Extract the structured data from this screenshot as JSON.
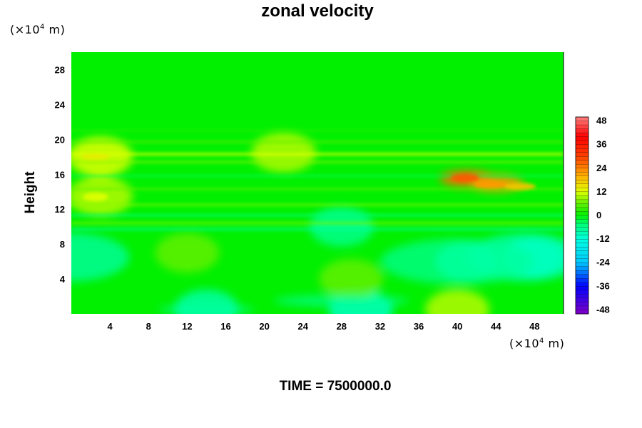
{
  "title": "zonal velocity",
  "y_unit": {
    "prefix": "(×10",
    "exp": "4",
    "suffix": " m)"
  },
  "x_unit": {
    "prefix": "(×10",
    "exp": "4",
    "suffix": " m)"
  },
  "footer": "TIME = 7500000.0",
  "chart_data": {
    "type": "heatmap",
    "title": "zonal velocity",
    "xlabel": "",
    "ylabel": "Height",
    "x_ticks": [
      4,
      8,
      12,
      16,
      20,
      24,
      28,
      32,
      36,
      40,
      44,
      48
    ],
    "y_ticks": [
      4,
      8,
      12,
      16,
      20,
      24,
      28
    ],
    "xlim": [
      0,
      51
    ],
    "ylim": [
      0,
      30
    ],
    "colorbar": {
      "levels": [
        48,
        36,
        24,
        12,
        0,
        -12,
        -24,
        -36,
        -48
      ],
      "range": [
        -50,
        50
      ],
      "colors": [
        "#ff8080",
        "#ff0000",
        "#ff8000",
        "#ffff00",
        "#00ff00",
        "#00ffc0",
        "#00c8ff",
        "#0000ff",
        "#8000c8"
      ]
    },
    "field_description_points": [
      {
        "x": 41,
        "y": 15.5,
        "value": 26
      },
      {
        "x": 44,
        "y": 15,
        "value": 22
      },
      {
        "x": 3,
        "y": 18,
        "value": 12
      },
      {
        "x": 22,
        "y": 18.5,
        "value": 10
      },
      {
        "x": 3,
        "y": 13.5,
        "value": 10
      },
      {
        "x": 48,
        "y": 6.5,
        "value": -10
      },
      {
        "x": 41,
        "y": 6,
        "value": -8
      },
      {
        "x": 28,
        "y": 10,
        "value": -6
      },
      {
        "x": 14,
        "y": 0.5,
        "value": -8
      },
      {
        "x": 30,
        "y": 0.5,
        "value": -10
      },
      {
        "x": 40,
        "y": 0.5,
        "value": 10
      },
      {
        "x": 12,
        "y": 7,
        "value": 6
      },
      {
        "x": 29,
        "y": 4,
        "value": 6
      }
    ]
  }
}
